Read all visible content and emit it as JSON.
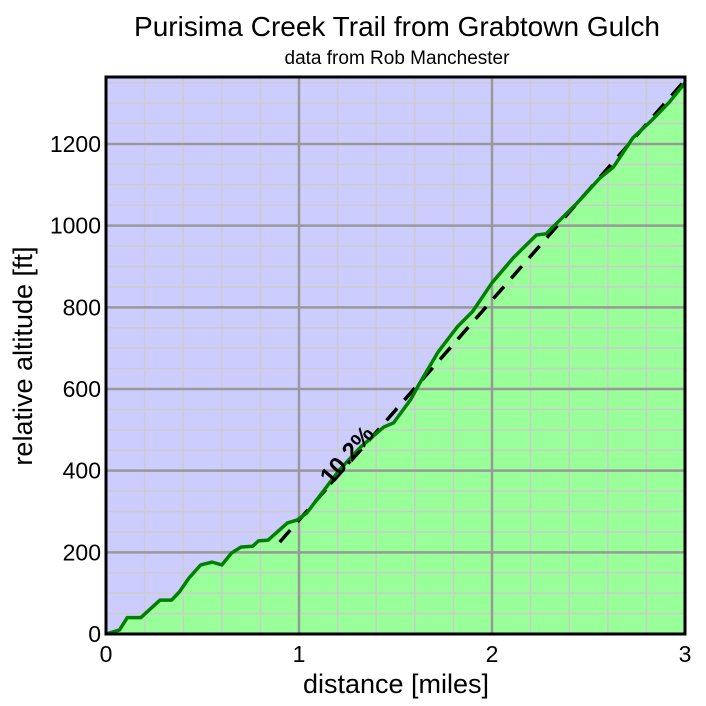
{
  "chart_data": {
    "type": "area",
    "title": "Purisima Creek Trail from Grabtown Gulch",
    "subtitle": "data from Rob Manchester",
    "xlabel": "distance [miles]",
    "ylabel": "relative altitude [ft]",
    "xlim": [
      0,
      3
    ],
    "ylim": [
      0,
      1364
    ],
    "xticks": [
      0,
      1,
      2,
      3
    ],
    "xtick_labels": [
      "0",
      "1",
      "2",
      "3"
    ],
    "yticks": [
      0,
      200,
      400,
      600,
      800,
      1000,
      1200
    ],
    "ytick_labels": [
      "0",
      "200",
      "400",
      "600",
      "800",
      "1000",
      "1200"
    ],
    "x_minor_step": 0.2,
    "y_minor_step": 50,
    "grid": true,
    "colors": {
      "above": "#ccccff",
      "below": "#99ff99",
      "line": "#008000",
      "major_grid": "#999999",
      "minor_grid": "#cccccc",
      "fit": "#000000"
    },
    "profile": {
      "x": [
        0,
        0.07,
        0.11,
        0.18,
        0.28,
        0.34,
        0.38,
        0.43,
        0.49,
        0.55,
        0.6,
        0.65,
        0.7,
        0.76,
        0.79,
        0.84,
        0.94,
        0.99,
        1.04,
        1.11,
        1.21,
        1.32,
        1.44,
        1.49,
        1.58,
        1.62,
        1.72,
        1.82,
        1.9,
        2.0,
        2.11,
        2.23,
        2.28,
        2.44,
        2.56,
        2.63,
        2.73,
        2.83,
        2.92,
        3.0
      ],
      "y": [
        0,
        10,
        40,
        40,
        83,
        83,
        103,
        137,
        169,
        176,
        169,
        198,
        213,
        215,
        228,
        230,
        272,
        279,
        296,
        340,
        402,
        458,
        507,
        517,
        575,
        610,
        690,
        752,
        790,
        860,
        921,
        977,
        980,
        1055,
        1117,
        1144,
        1215,
        1259,
        1303,
        1350
      ]
    },
    "fit_line": {
      "x": [
        0.9,
        3.0
      ],
      "y": [
        225,
        1356
      ],
      "label": "10.2%",
      "style": "dashed"
    }
  }
}
